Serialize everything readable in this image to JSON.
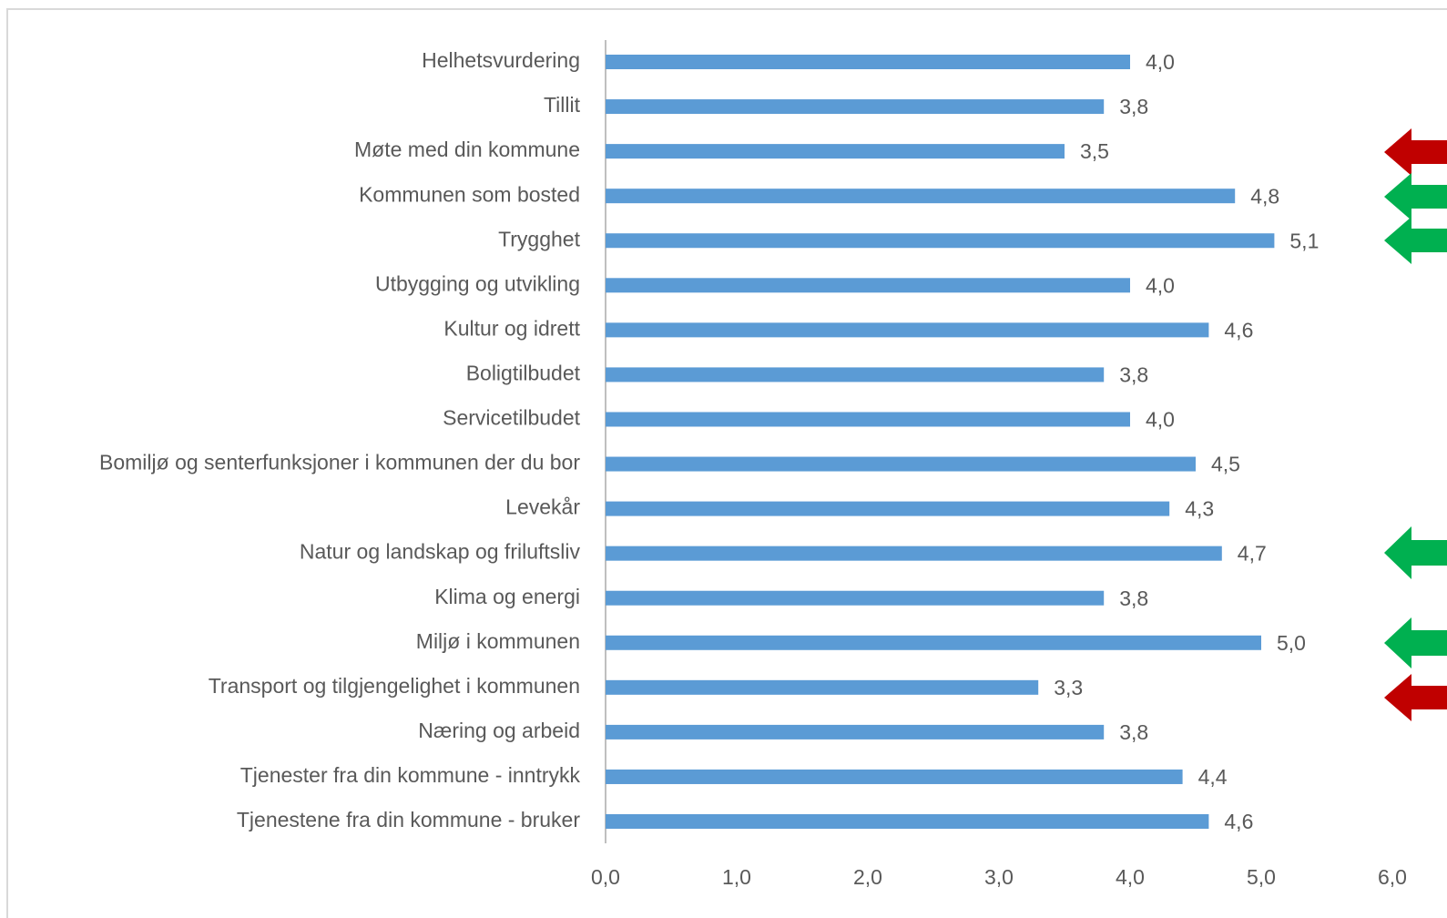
{
  "chart_data": {
    "type": "bar",
    "orientation": "horizontal",
    "categories": [
      "Helhetsvurdering",
      "Tillit",
      "Møte med din kommune",
      "Kommunen som bosted",
      "Trygghet",
      "Utbygging og utvikling",
      "Kultur og idrett",
      "Boligtilbudet",
      "Servicetilbudet",
      "Bomiljø og senterfunksjoner i kommunen der du bor",
      "Levekår",
      "Natur og landskap og friluftsliv",
      "Klima og energi",
      "Miljø i kommunen",
      "Transport og tilgjengelighet i kommunen",
      "Næring og arbeid",
      "Tjenester fra din kommune - inntrykk",
      "Tjenestene fra din kommune - bruker"
    ],
    "values": [
      4.0,
      3.8,
      3.5,
      4.8,
      5.1,
      4.0,
      4.6,
      3.8,
      4.0,
      4.5,
      4.3,
      4.7,
      3.8,
      5.0,
      3.3,
      3.8,
      4.4,
      4.6
    ],
    "value_labels": [
      "4,0",
      "3,8",
      "3,5",
      "4,8",
      "5,1",
      "4,0",
      "4,6",
      "3,8",
      "4,0",
      "4,5",
      "4,3",
      "4,7",
      "3,8",
      "5,0",
      "3,3",
      "3,8",
      "4,4",
      "4,6"
    ],
    "color": "#5b9bd5",
    "xlim": [
      0,
      6
    ],
    "xticks": [
      {
        "value": 0,
        "label": "0,0"
      },
      {
        "value": 1,
        "label": "1,0"
      },
      {
        "value": 2,
        "label": "2,0"
      },
      {
        "value": 3,
        "label": "3,0"
      },
      {
        "value": 4,
        "label": "4,0"
      },
      {
        "value": 5,
        "label": "5,0"
      },
      {
        "value": 6,
        "label": "6,0"
      }
    ],
    "grid": false
  }
}
